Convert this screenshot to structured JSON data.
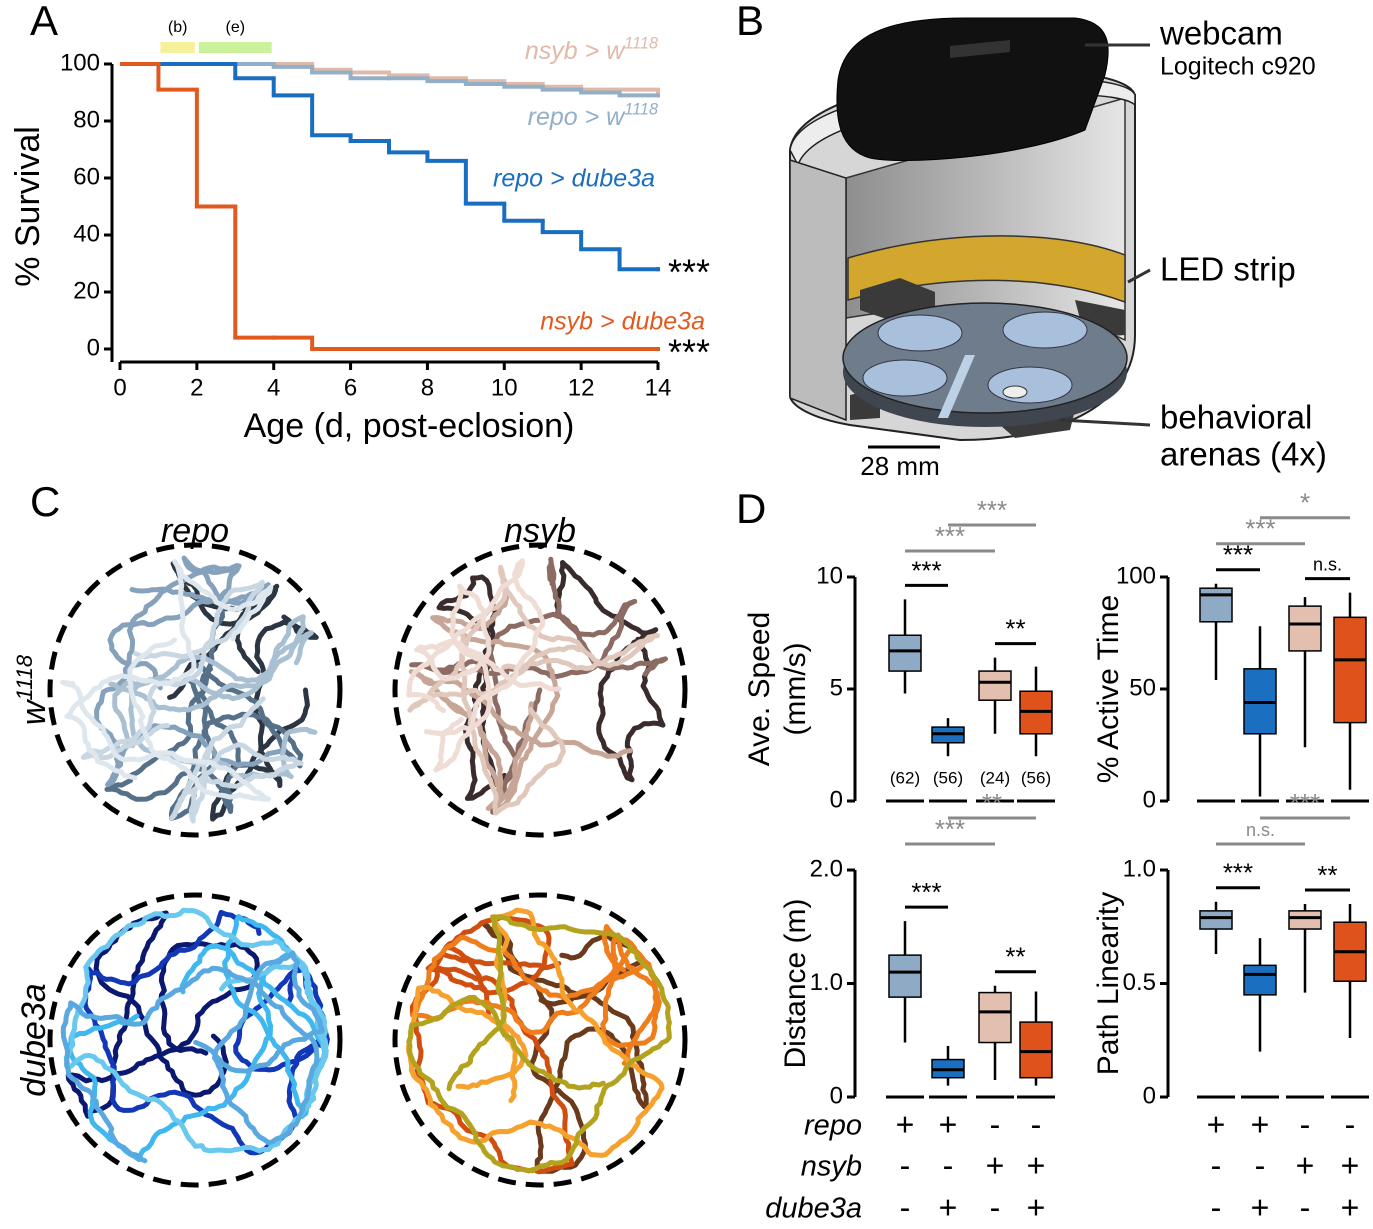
{
  "panel_labels": {
    "a": "A",
    "b": "B",
    "c": "C",
    "d": "D"
  },
  "chart_data": [
    {
      "type": "step",
      "ylabel": "% Survival",
      "xlabel": "Age (d, post-eclosion)",
      "x": [
        0,
        1,
        2,
        3,
        4,
        5,
        6,
        7,
        8,
        9,
        10,
        11,
        12,
        13,
        14
      ],
      "xlim": [
        0,
        14
      ],
      "xticks": [
        0,
        2,
        4,
        6,
        8,
        10,
        12,
        14
      ],
      "ylim": [
        0,
        100
      ],
      "yticks": [
        0,
        20,
        40,
        60,
        80,
        100
      ],
      "periods": [
        {
          "label": "(b)",
          "start": 1,
          "end": 2,
          "color": "#f7f09a"
        },
        {
          "label": "(e)",
          "start": 2,
          "end": 4,
          "color": "#c9f29a"
        }
      ],
      "series": [
        {
          "name": "nsyb > w1118",
          "color": "#e2b9a8",
          "values": [
            100,
            100,
            100,
            100,
            100,
            98,
            97,
            96,
            95,
            94,
            93,
            92,
            91,
            91,
            90
          ]
        },
        {
          "name": "repo > w1118",
          "color": "#93afc8",
          "values": [
            100,
            100,
            100,
            100,
            99,
            97,
            95,
            95,
            94,
            93,
            92,
            91,
            90,
            89,
            89
          ]
        },
        {
          "name": "repo > dube3a",
          "color": "#1a6ec0",
          "values": [
            100,
            100,
            100,
            95,
            89,
            75,
            73,
            69,
            66,
            51,
            45,
            41,
            35,
            28,
            28
          ],
          "significance": "***"
        },
        {
          "name": "nsyb > dube3a",
          "color": "#e05a20",
          "values": [
            100,
            91,
            50,
            4,
            4,
            0,
            0,
            0,
            0,
            0,
            0,
            0,
            0,
            0,
            0
          ],
          "significance": "***"
        }
      ]
    },
    {
      "type": "box",
      "ylabel": [
        "Ave. Speed",
        "(mm/s)"
      ],
      "ylim": [
        0,
        10
      ],
      "yticks": [
        0,
        5,
        10
      ],
      "n_labels": [
        "(62)",
        "(56)",
        "(24)",
        "(56)"
      ],
      "groups": [
        {
          "color": "#8faac4",
          "whisker_low": 4.8,
          "q1": 5.8,
          "median": 6.7,
          "q3": 7.4,
          "whisker_high": 9.0
        },
        {
          "color": "#1b6fc0",
          "whisker_low": 2.0,
          "q1": 2.6,
          "median": 3.0,
          "q3": 3.3,
          "whisker_high": 3.7
        },
        {
          "color": "#e2bfae",
          "whisker_low": 3.0,
          "q1": 4.5,
          "median": 5.3,
          "q3": 5.8,
          "whisker_high": 6.4
        },
        {
          "color": "#e0521c",
          "whisker_low": 2.0,
          "q1": 3.0,
          "median": 4.0,
          "q3": 4.9,
          "whisker_high": 6.0
        }
      ],
      "brackets": [
        {
          "groups": [
            0,
            1
          ],
          "label": "***",
          "color": "#000000"
        },
        {
          "groups": [
            2,
            3
          ],
          "label": "**",
          "color": "#000000"
        },
        {
          "groups": [
            0,
            2
          ],
          "label": "***",
          "color": "#8a8a8a"
        },
        {
          "groups": [
            1,
            3
          ],
          "label": "***",
          "color": "#8a8a8a"
        }
      ]
    },
    {
      "type": "box",
      "ylabel": [
        "% Active Time"
      ],
      "ylim": [
        0,
        100
      ],
      "yticks": [
        0,
        50,
        100
      ],
      "groups": [
        {
          "color": "#8faac4",
          "whisker_low": 54,
          "q1": 80,
          "median": 92,
          "q3": 95,
          "whisker_high": 97
        },
        {
          "color": "#1b6fc0",
          "whisker_low": 2,
          "q1": 30,
          "median": 44,
          "q3": 59,
          "whisker_high": 78
        },
        {
          "color": "#e2bfae",
          "whisker_low": 24,
          "q1": 67,
          "median": 79,
          "q3": 87,
          "whisker_high": 91
        },
        {
          "color": "#e0521c",
          "whisker_low": 5,
          "q1": 35,
          "median": 63,
          "q3": 82,
          "whisker_high": 93
        }
      ],
      "brackets": [
        {
          "groups": [
            0,
            1
          ],
          "label": "***",
          "color": "#000000"
        },
        {
          "groups": [
            2,
            3
          ],
          "label": "n.s.",
          "color": "#000000"
        },
        {
          "groups": [
            0,
            2
          ],
          "label": "***",
          "color": "#8a8a8a"
        },
        {
          "groups": [
            1,
            3
          ],
          "label": "*",
          "color": "#8a8a8a"
        }
      ]
    },
    {
      "type": "box",
      "ylabel": [
        "Distance (m)"
      ],
      "ylim": [
        0,
        2
      ],
      "yticks": [
        0,
        {
          "value": 1,
          "label": "1.0"
        },
        {
          "value": 2,
          "label": "2.0"
        }
      ],
      "groups": [
        {
          "color": "#8faac4",
          "whisker_low": 0.48,
          "q1": 0.88,
          "median": 1.1,
          "q3": 1.25,
          "whisker_high": 1.55
        },
        {
          "color": "#1b6fc0",
          "whisker_low": 0.1,
          "q1": 0.17,
          "median": 0.24,
          "q3": 0.33,
          "whisker_high": 0.45
        },
        {
          "color": "#e2bfae",
          "whisker_low": 0.15,
          "q1": 0.48,
          "median": 0.75,
          "q3": 0.92,
          "whisker_high": 0.98
        },
        {
          "color": "#e0521c",
          "whisker_low": 0.1,
          "q1": 0.17,
          "median": 0.4,
          "q3": 0.66,
          "whisker_high": 0.93
        }
      ],
      "brackets": [
        {
          "groups": [
            0,
            1
          ],
          "label": "***",
          "color": "#000000"
        },
        {
          "groups": [
            2,
            3
          ],
          "label": "**",
          "color": "#000000"
        },
        {
          "groups": [
            0,
            2
          ],
          "label": "***",
          "color": "#8a8a8a"
        },
        {
          "groups": [
            1,
            3
          ],
          "label": "**",
          "color": "#8a8a8a"
        }
      ]
    },
    {
      "type": "box",
      "ylabel": [
        "Path Linearity"
      ],
      "ylim": [
        0,
        1
      ],
      "yticks": [
        0,
        0.5,
        {
          "value": 1,
          "label": "1.0"
        }
      ],
      "groups": [
        {
          "color": "#8faac4",
          "whisker_low": 0.63,
          "q1": 0.74,
          "median": 0.79,
          "q3": 0.82,
          "whisker_high": 0.86
        },
        {
          "color": "#1b6fc0",
          "whisker_low": 0.2,
          "q1": 0.45,
          "median": 0.54,
          "q3": 0.58,
          "whisker_high": 0.7
        },
        {
          "color": "#e2bfae",
          "whisker_low": 0.46,
          "q1": 0.74,
          "median": 0.79,
          "q3": 0.82,
          "whisker_high": 0.85
        },
        {
          "color": "#e0521c",
          "whisker_low": 0.26,
          "q1": 0.51,
          "median": 0.64,
          "q3": 0.77,
          "whisker_high": 0.85
        }
      ],
      "brackets": [
        {
          "groups": [
            0,
            1
          ],
          "label": "***",
          "color": "#000000"
        },
        {
          "groups": [
            2,
            3
          ],
          "label": "**",
          "color": "#000000"
        },
        {
          "groups": [
            0,
            2
          ],
          "label": "n.s.",
          "color": "#8a8a8a"
        },
        {
          "groups": [
            1,
            3
          ],
          "label": "***",
          "color": "#8a8a8a"
        }
      ]
    }
  ],
  "diagram": {
    "webcam": "webcam",
    "webcam_model": "Logitech c920",
    "led": "LED strip",
    "arenas": [
      "behavioral",
      "arenas (4x)"
    ],
    "scale": "28 mm"
  },
  "trajectories": {
    "columns": [
      "repo",
      "nsyb"
    ],
    "rows": [
      "w1118",
      "dube3a"
    ]
  },
  "genotype_table": {
    "rows": [
      {
        "label": "repo",
        "marks": [
          "+",
          "+",
          "-",
          "-"
        ]
      },
      {
        "label": "nsyb",
        "marks": [
          "-",
          "-",
          "+",
          "+"
        ]
      },
      {
        "label": "dube3a",
        "marks": [
          "-",
          "+",
          "-",
          "+"
        ]
      }
    ]
  }
}
